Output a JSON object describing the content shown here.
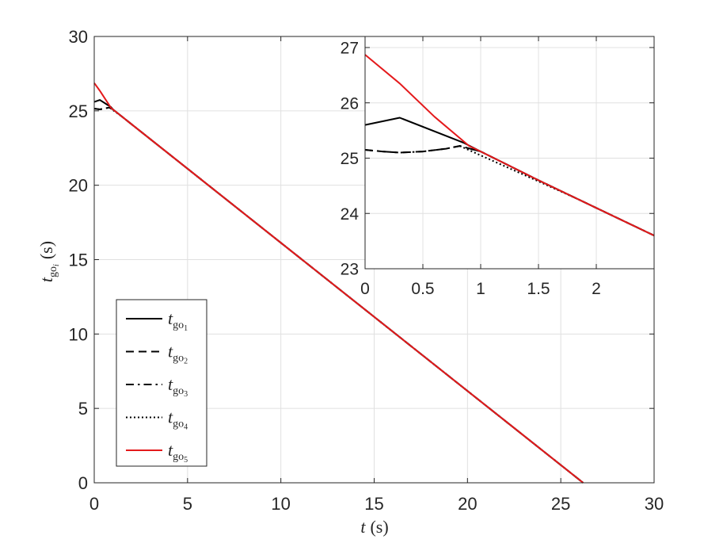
{
  "chart_data": [
    {
      "type": "line",
      "role": "main",
      "xlabel_var": "t",
      "xlabel_unit": "(s)",
      "ylabel_var": "t",
      "ylabel_sub": "go",
      "ylabel_subsub": "i",
      "ylabel_unit": "(s)",
      "xlim": [
        0,
        30
      ],
      "ylim": [
        0,
        30
      ],
      "xticks": [
        0,
        5,
        10,
        15,
        20,
        25,
        30
      ],
      "yticks": [
        0,
        5,
        10,
        15,
        20,
        25,
        30
      ],
      "xtick_labels": [
        "0",
        "5",
        "10",
        "15",
        "20",
        "25",
        "30"
      ],
      "ytick_labels": [
        "0",
        "5",
        "10",
        "15",
        "20",
        "25",
        "30"
      ],
      "grid": true,
      "legend_position": "bottom-left",
      "series": [
        {
          "name": "t_go1",
          "color": "#000000",
          "style": "solid",
          "x": [
            0,
            0.3,
            0.9,
            1.0,
            2.0,
            26.2
          ],
          "y": [
            25.6,
            25.73,
            25.25,
            25.1,
            24.1,
            0.0
          ]
        },
        {
          "name": "t_go2",
          "color": "#000000",
          "style": "dashed",
          "x": [
            0,
            0.3,
            0.8,
            1.0,
            2.0,
            26.2
          ],
          "y": [
            25.15,
            25.1,
            25.22,
            25.1,
            24.1,
            0.0
          ]
        },
        {
          "name": "t_go3",
          "color": "#000000",
          "style": "dashdot",
          "x": [
            0,
            0.3,
            0.8,
            1.0,
            2.0,
            26.2
          ],
          "y": [
            25.15,
            25.1,
            25.22,
            25.1,
            24.1,
            0.0
          ]
        },
        {
          "name": "t_go4",
          "color": "#000000",
          "style": "dotted",
          "x": [
            0.85,
            1.0,
            1.5,
            2.0,
            26.2
          ],
          "y": [
            25.2,
            25.05,
            24.6,
            24.1,
            0.0
          ]
        },
        {
          "name": "t_go5",
          "color": "#e41a1c",
          "style": "solid",
          "x": [
            0,
            0.3,
            0.9,
            1.0,
            2.0,
            26.2
          ],
          "y": [
            26.87,
            26.35,
            25.2,
            25.1,
            24.1,
            0.0
          ]
        }
      ]
    },
    {
      "type": "line",
      "role": "inset",
      "xlim": [
        0,
        2.5
      ],
      "ylim": [
        23,
        27.2
      ],
      "xticks": [
        0,
        0.5,
        1,
        1.5,
        2
      ],
      "yticks": [
        23,
        24,
        25,
        26,
        27
      ],
      "xtick_labels": [
        "0",
        "0.5",
        "1",
        "1.5",
        "2"
      ],
      "ytick_labels": [
        "23",
        "24",
        "25",
        "26",
        "27"
      ],
      "grid": true,
      "series": [
        {
          "name": "t_go1",
          "color": "#000000",
          "style": "solid",
          "x": [
            0,
            0.3,
            0.85,
            1.0,
            1.5,
            2.0,
            2.5
          ],
          "y": [
            25.6,
            25.73,
            25.28,
            25.12,
            24.6,
            24.1,
            23.6
          ]
        },
        {
          "name": "t_go2",
          "color": "#000000",
          "style": "dashed",
          "x": [
            0,
            0.15,
            0.3,
            0.5,
            0.7,
            0.82,
            1.0,
            1.5,
            2.0,
            2.5
          ],
          "y": [
            25.15,
            25.12,
            25.1,
            25.12,
            25.17,
            25.22,
            25.12,
            24.6,
            24.1,
            23.6
          ]
        },
        {
          "name": "t_go3",
          "color": "#000000",
          "style": "dashdot",
          "x": [
            0,
            0.15,
            0.3,
            0.5,
            0.7,
            0.82,
            1.0,
            1.5,
            2.0,
            2.5
          ],
          "y": [
            25.15,
            25.12,
            25.1,
            25.12,
            25.17,
            25.22,
            25.12,
            24.6,
            24.1,
            23.6
          ]
        },
        {
          "name": "t_go4",
          "color": "#000000",
          "style": "dotted",
          "x": [
            0.82,
            1.0,
            1.5,
            1.85,
            2.5
          ],
          "y": [
            25.22,
            25.05,
            24.58,
            24.25,
            23.6
          ]
        },
        {
          "name": "t_go5",
          "color": "#e41a1c",
          "style": "solid",
          "x": [
            0,
            0.3,
            0.6,
            0.9,
            1.0,
            1.5,
            2.0,
            2.5
          ],
          "y": [
            26.87,
            26.35,
            25.75,
            25.22,
            25.12,
            24.6,
            24.1,
            23.6
          ]
        }
      ]
    }
  ],
  "legend": {
    "items": [
      {
        "var": "t",
        "sub": "go",
        "subsub": "1",
        "color": "#000000",
        "style": "solid"
      },
      {
        "var": "t",
        "sub": "go",
        "subsub": "2",
        "color": "#000000",
        "style": "dashed"
      },
      {
        "var": "t",
        "sub": "go",
        "subsub": "3",
        "color": "#000000",
        "style": "dashdot"
      },
      {
        "var": "t",
        "sub": "go",
        "subsub": "4",
        "color": "#000000",
        "style": "dotted"
      },
      {
        "var": "t",
        "sub": "go",
        "subsub": "5",
        "color": "#e41a1c",
        "style": "solid"
      }
    ]
  }
}
